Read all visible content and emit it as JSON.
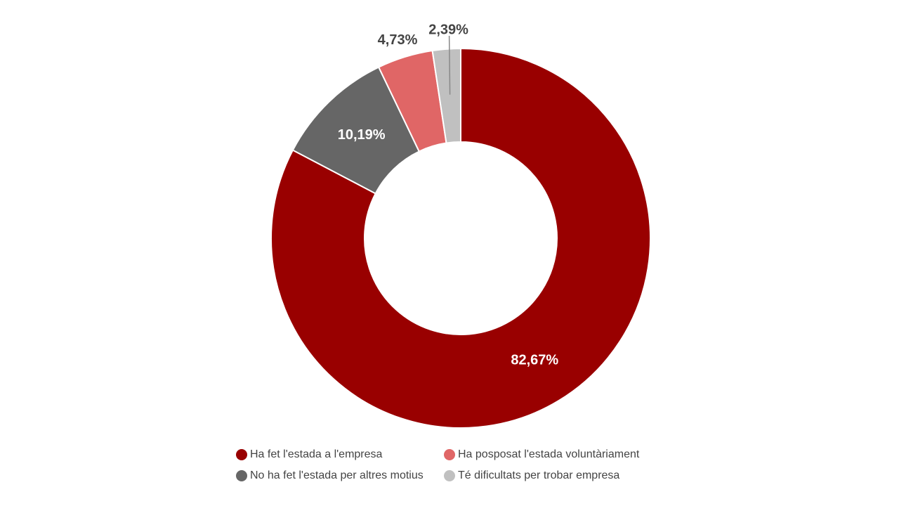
{
  "chart_data": {
    "type": "pie",
    "donut": true,
    "categories": [
      "Ha fet l'estada a l'empresa",
      "No ha fet l'estada per altres motius",
      "Ha posposat l'estada voluntàriament",
      "Té dificultats per trobar empresa"
    ],
    "values": [
      82.67,
      10.19,
      4.73,
      2.39
    ],
    "value_labels": [
      "82,67%",
      "10,19%",
      "4,73%",
      "2,39%"
    ],
    "colors": [
      "#990000",
      "#666666",
      "#e06666",
      "#c0c0c0"
    ],
    "label_colors": [
      "#ffffff",
      "#ffffff",
      "#444444",
      "#444444"
    ],
    "label_inside": [
      true,
      true,
      false,
      false
    ],
    "legend_position": "bottom",
    "legend": [
      {
        "label": "Ha fet l'estada a l'empresa",
        "color": "#990000"
      },
      {
        "label": "Ha posposat l'estada voluntàriament",
        "color": "#e06666"
      },
      {
        "label": "No ha fet l'estada per altres motius",
        "color": "#666666"
      },
      {
        "label": "Té dificultats per trobar empresa",
        "color": "#c0c0c0"
      }
    ]
  }
}
